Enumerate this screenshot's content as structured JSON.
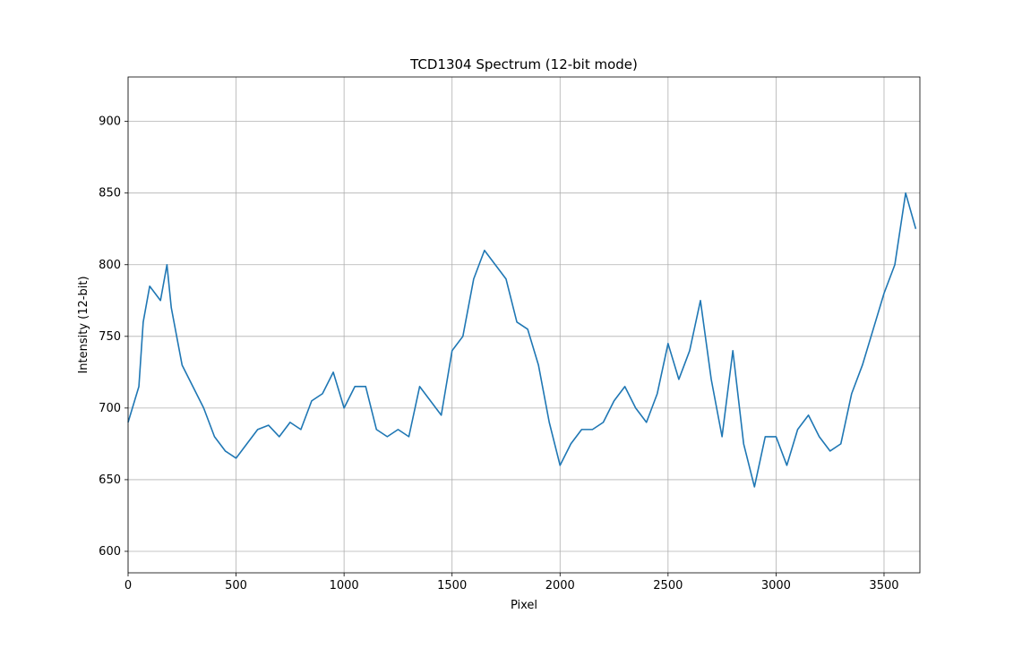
{
  "chart_data": {
    "type": "line",
    "title": "TCD1304 Spectrum (12-bit mode)",
    "xlabel": "Pixel",
    "ylabel": "Intensity (12-bit)",
    "x": [
      0,
      50,
      70,
      100,
      150,
      180,
      200,
      250,
      300,
      350,
      400,
      450,
      500,
      550,
      600,
      650,
      700,
      750,
      800,
      850,
      900,
      950,
      1000,
      1050,
      1100,
      1150,
      1200,
      1250,
      1300,
      1350,
      1400,
      1450,
      1500,
      1550,
      1600,
      1650,
      1700,
      1750,
      1800,
      1850,
      1900,
      1950,
      2000,
      2050,
      2100,
      2150,
      2200,
      2250,
      2300,
      2350,
      2400,
      2450,
      2500,
      2550,
      2600,
      2650,
      2700,
      2750,
      2800,
      2850,
      2900,
      2950,
      3000,
      3050,
      3100,
      3150,
      3200,
      3250,
      3300,
      3350,
      3400,
      3450,
      3500,
      3550,
      3600,
      3647
    ],
    "series": [
      {
        "name": "Intensity",
        "color": "#1f77b4",
        "values": [
          690,
          715,
          760,
          785,
          775,
          800,
          770,
          730,
          715,
          700,
          680,
          670,
          665,
          675,
          685,
          688,
          680,
          690,
          685,
          705,
          710,
          725,
          700,
          715,
          715,
          685,
          680,
          685,
          680,
          715,
          705,
          695,
          740,
          750,
          790,
          810,
          800,
          790,
          760,
          755,
          730,
          690,
          660,
          675,
          685,
          685,
          690,
          705,
          715,
          700,
          690,
          710,
          745,
          720,
          740,
          775,
          720,
          680,
          740,
          675,
          645,
          680,
          680,
          660,
          685,
          695,
          680,
          670,
          675,
          710,
          730,
          755,
          780,
          800,
          850,
          825
        ]
      }
    ],
    "xlim": [
      0,
      3666
    ],
    "ylim": [
      585,
      931
    ],
    "xticks": [
      0,
      500,
      1000,
      1500,
      2000,
      2500,
      3000,
      3500
    ],
    "yticks": [
      600,
      650,
      700,
      750,
      800,
      850,
      900
    ],
    "grid": true
  }
}
